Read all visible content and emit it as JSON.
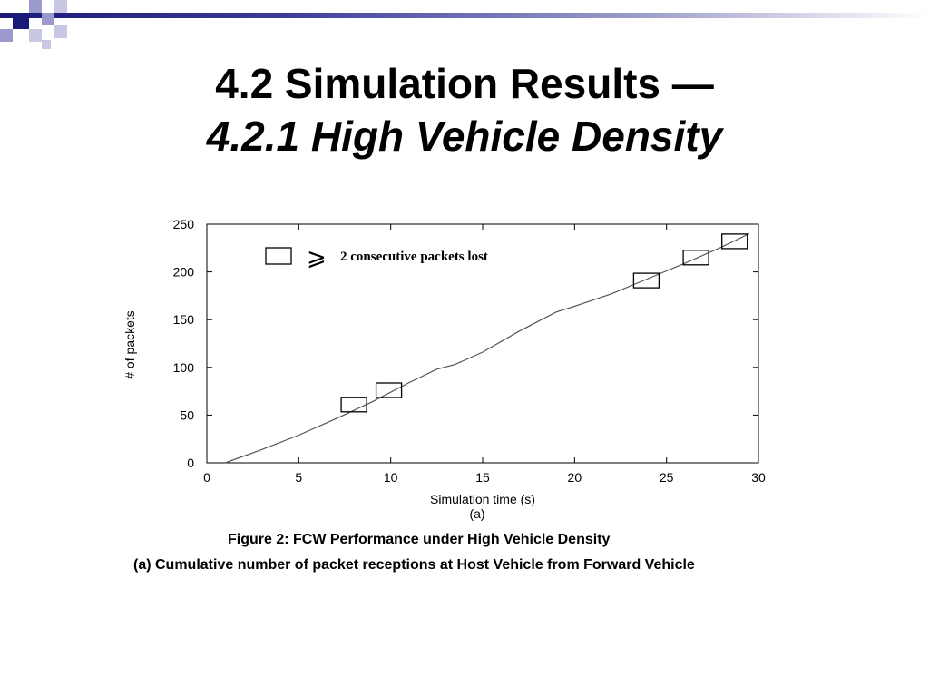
{
  "slide": {
    "title_line1": "4.2 Simulation Results  —",
    "title_line2": "4.2.1 High Vehicle Density",
    "caption_line1": "Figure 2: FCW Performance under High Vehicle Density",
    "caption_line2": "(a) Cumulative number of packet receptions at Host Vehicle from Forward Vehicle",
    "accent_color": "#1a1a7a"
  },
  "chart_data": {
    "type": "line",
    "title": "",
    "xlabel": "Simulation time (s)",
    "ylabel": "# of packets",
    "sublabel": "(a)",
    "xlim": [
      0,
      30
    ],
    "ylim": [
      0,
      250
    ],
    "xticks": [
      "0",
      "5",
      "10",
      "15",
      "20",
      "25",
      "30"
    ],
    "yticks": [
      "0",
      "50",
      "100",
      "150",
      "200",
      "250"
    ],
    "grid": false,
    "legend": {
      "placement": "top-left",
      "symbol": "square",
      "relation": "⩾",
      "text": "2 consecutive packets lost"
    },
    "series": [
      {
        "x": [
          1,
          3,
          5,
          7,
          9,
          11,
          12.5,
          13.5,
          15,
          17,
          19,
          20,
          22,
          24,
          26,
          28,
          29.5
        ],
        "y": [
          0,
          14,
          29,
          46,
          64,
          84,
          98,
          103,
          116,
          138,
          158,
          164,
          177,
          193,
          209,
          226,
          240
        ]
      }
    ],
    "markers": [
      {
        "x": 8,
        "y": 61
      },
      {
        "x": 9.9,
        "y": 76
      },
      {
        "x": 23.9,
        "y": 191
      },
      {
        "x": 26.6,
        "y": 215
      },
      {
        "x": 28.7,
        "y": 232
      }
    ]
  }
}
